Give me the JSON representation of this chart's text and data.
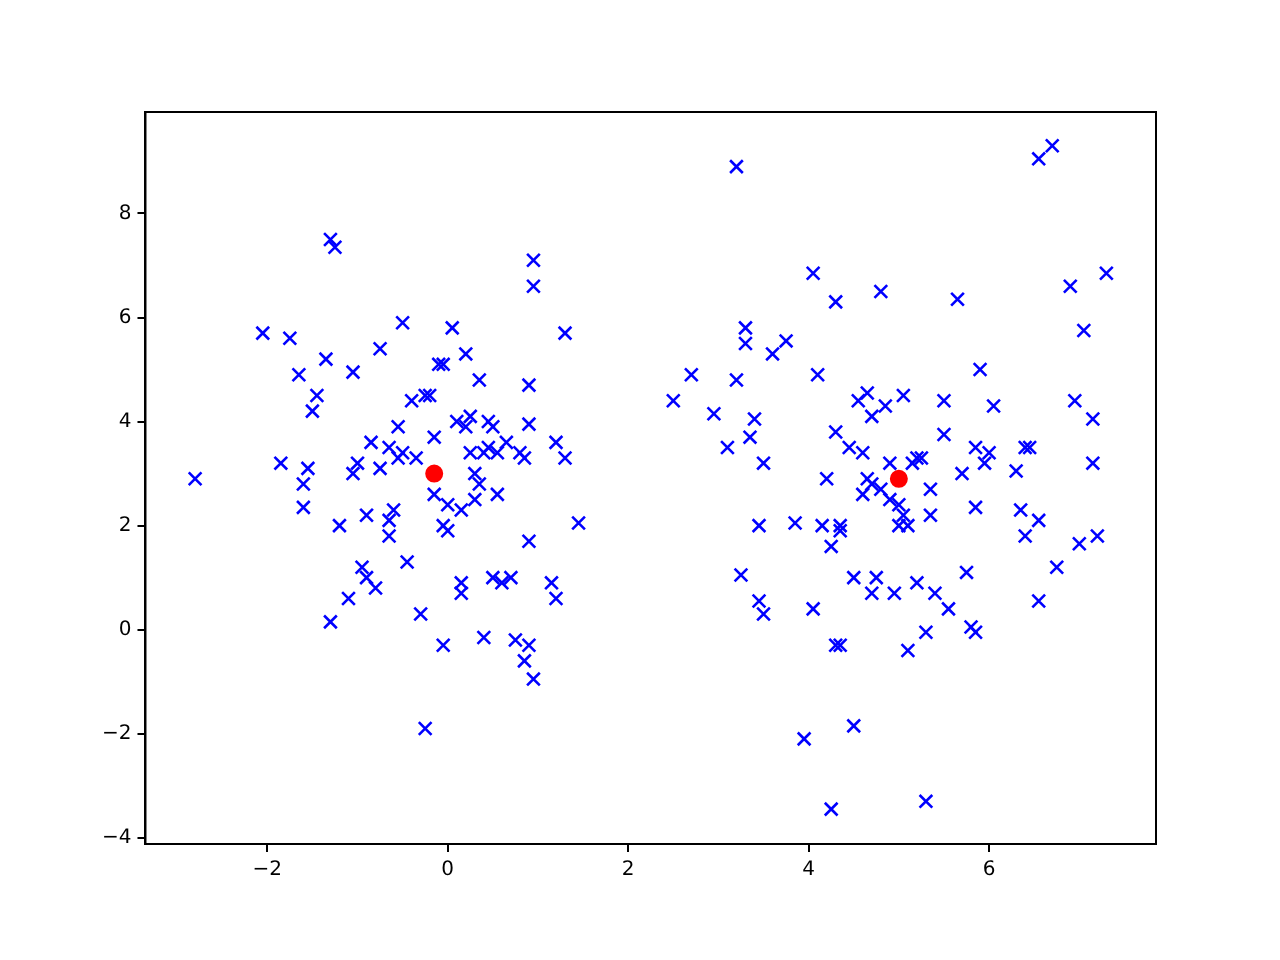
{
  "chart_data": {
    "type": "scatter",
    "xlim": [
      -3.35,
      7.85
    ],
    "ylim": [
      -4.12,
      9.95
    ],
    "xticks": [
      {
        "value": -2,
        "label": "−2"
      },
      0,
      2,
      4,
      6
    ],
    "yticks": [
      {
        "value": -4,
        "label": "−4"
      },
      {
        "value": -2,
        "label": "−2"
      },
      0,
      2,
      4,
      6,
      8
    ],
    "grid": false,
    "legend": false,
    "series": [
      {
        "color": "#0000ff",
        "marker": "cross",
        "x": [
          -2.8,
          -2.05,
          -1.85,
          -1.75,
          -1.65,
          -1.6,
          -1.6,
          -1.55,
          -1.5,
          -1.45,
          -1.35,
          -1.3,
          -1.25,
          -1.3,
          -1.2,
          -1.1,
          -1.05,
          -1.05,
          -1.0,
          -0.95,
          -0.9,
          -0.9,
          -0.85,
          -0.8,
          -0.75,
          -0.75,
          -0.65,
          -0.65,
          -0.65,
          -0.6,
          -0.55,
          -0.55,
          -0.5,
          -0.5,
          -0.45,
          -0.4,
          -0.35,
          -0.3,
          -0.25,
          -0.25,
          -0.2,
          -0.15,
          -0.15,
          -0.1,
          -0.05,
          -0.05,
          0.0,
          -0.05,
          0.0,
          0.05,
          0.1,
          0.15,
          0.15,
          0.15,
          0.2,
          0.2,
          0.25,
          0.25,
          0.3,
          0.3,
          0.35,
          0.35,
          0.4,
          0.4,
          0.45,
          0.45,
          0.5,
          0.5,
          0.55,
          0.55,
          0.6,
          0.65,
          0.7,
          0.75,
          0.8,
          0.85,
          0.85,
          0.9,
          0.9,
          0.9,
          0.9,
          0.95,
          0.95,
          0.95,
          1.15,
          1.2,
          1.2,
          1.3,
          1.3,
          1.45,
          2.5,
          2.7,
          2.95,
          3.1,
          3.2,
          3.2,
          3.25,
          3.3,
          3.3,
          3.35,
          3.4,
          3.45,
          3.45,
          3.5,
          3.5,
          3.6,
          3.75,
          3.85,
          3.95,
          4.05,
          4.05,
          4.1,
          4.15,
          4.2,
          4.25,
          4.25,
          4.3,
          4.3,
          4.3,
          4.35,
          4.35,
          4.35,
          4.45,
          4.5,
          4.5,
          4.55,
          4.6,
          4.6,
          4.65,
          4.65,
          4.7,
          4.7,
          4.7,
          4.75,
          4.8,
          4.8,
          4.85,
          4.9,
          4.9,
          4.95,
          5.0,
          5.0,
          5.05,
          5.05,
          5.1,
          5.1,
          5.15,
          5.2,
          5.2,
          5.25,
          5.3,
          5.3,
          5.35,
          5.35,
          5.4,
          5.5,
          5.5,
          5.55,
          5.65,
          5.7,
          5.75,
          5.8,
          5.85,
          5.85,
          5.85,
          5.9,
          5.95,
          6.05,
          6.0,
          6.3,
          6.35,
          6.4,
          6.45,
          6.4,
          6.55,
          6.55,
          6.55,
          6.7,
          6.75,
          6.9,
          6.95,
          7.05,
          7.0,
          7.15,
          7.15,
          7.2,
          7.3
        ],
        "values": [
          2.9,
          5.7,
          3.2,
          5.6,
          4.9,
          2.8,
          2.35,
          3.1,
          4.2,
          4.5,
          5.2,
          7.5,
          7.35,
          0.15,
          2.0,
          0.6,
          3.0,
          4.95,
          3.2,
          1.2,
          2.2,
          1.0,
          3.6,
          0.8,
          5.4,
          3.1,
          2.1,
          1.8,
          3.5,
          2.3,
          3.9,
          3.3,
          5.9,
          3.4,
          1.3,
          4.4,
          3.3,
          0.3,
          -1.9,
          4.5,
          4.5,
          3.7,
          2.6,
          5.1,
          5.1,
          2.0,
          1.9,
          -0.3,
          2.4,
          5.8,
          4.0,
          0.9,
          0.7,
          2.3,
          5.3,
          3.9,
          4.1,
          3.4,
          2.5,
          3.0,
          2.8,
          4.8,
          3.4,
          -0.15,
          3.5,
          4.0,
          1.0,
          3.9,
          2.6,
          3.4,
          0.9,
          3.6,
          1.0,
          -0.2,
          3.4,
          3.3,
          -0.6,
          4.7,
          -0.3,
          1.7,
          3.95,
          6.6,
          7.1,
          -0.95,
          0.9,
          0.6,
          3.6,
          5.7,
          3.3,
          2.05,
          4.4,
          4.9,
          4.15,
          3.5,
          4.8,
          8.9,
          1.05,
          5.5,
          5.8,
          3.7,
          4.05,
          2.0,
          0.55,
          0.3,
          3.2,
          5.3,
          5.55,
          2.05,
          -2.1,
          6.85,
          0.4,
          4.9,
          2.0,
          2.9,
          -3.45,
          1.6,
          3.8,
          6.3,
          -0.3,
          1.9,
          -0.3,
          2.0,
          3.5,
          -1.85,
          1.0,
          4.4,
          3.4,
          2.6,
          4.55,
          2.9,
          0.7,
          4.1,
          2.8,
          1.0,
          6.5,
          2.7,
          4.3,
          2.5,
          3.2,
          0.7,
          2.4,
          2.0,
          4.5,
          2.2,
          -0.4,
          2.0,
          3.2,
          0.9,
          3.3,
          3.3,
          -0.05,
          -3.3,
          2.7,
          2.2,
          0.7,
          3.75,
          4.4,
          0.4,
          6.35,
          3.0,
          1.1,
          0.05,
          -0.05,
          2.35,
          3.5,
          5.0,
          3.2,
          4.3,
          3.4,
          3.05,
          2.3,
          3.5,
          3.5,
          1.8,
          2.1,
          0.55,
          9.05,
          9.3,
          1.2,
          6.6,
          4.4,
          5.75,
          1.65,
          3.2,
          4.05,
          1.8,
          6.85
        ]
      },
      {
        "color": "#ff0000",
        "marker": "circle",
        "x": [
          -0.15,
          5.0
        ],
        "values": [
          3.0,
          2.9
        ]
      }
    ]
  }
}
